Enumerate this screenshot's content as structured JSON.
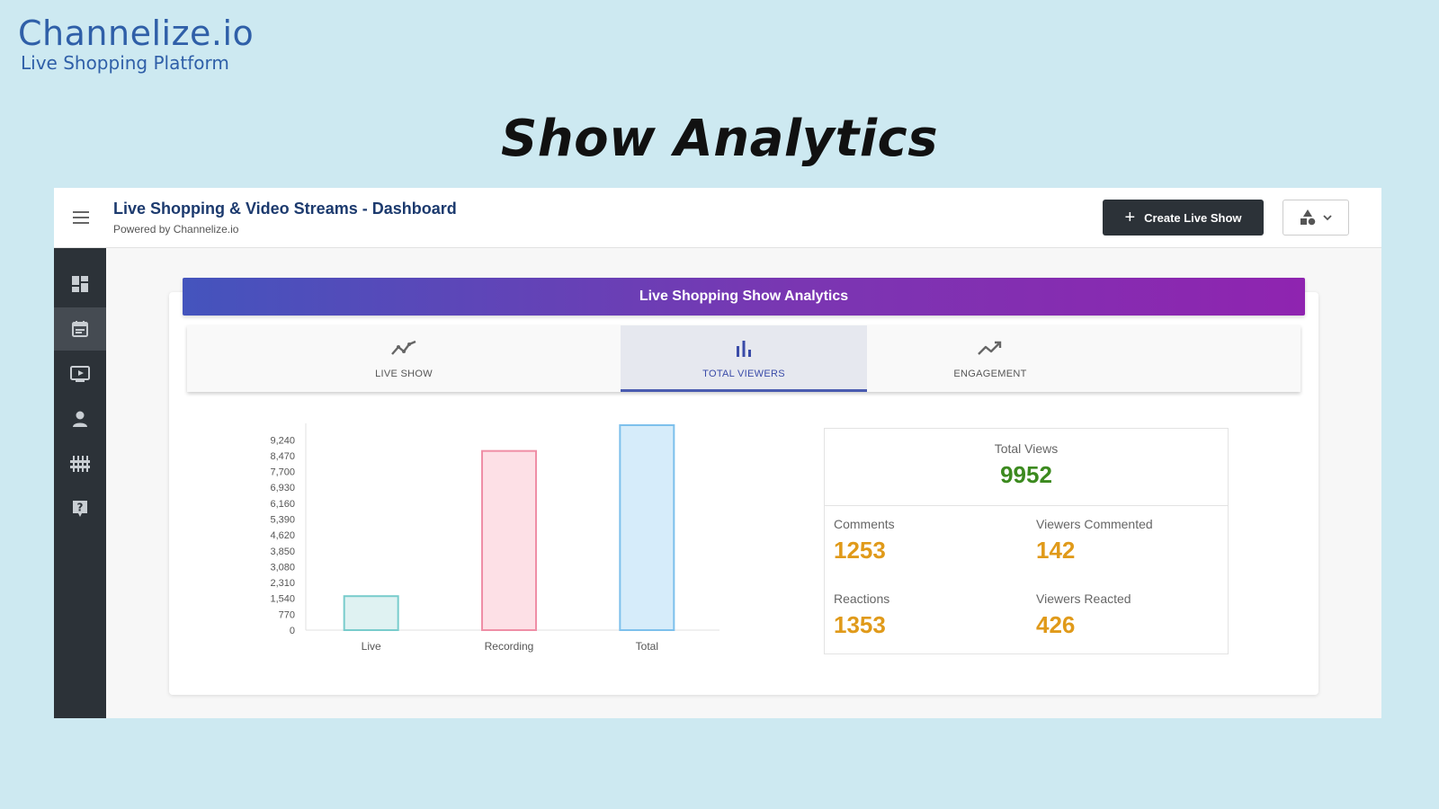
{
  "brand": {
    "name": "Channelize.io",
    "tagline": "Live Shopping Platform"
  },
  "headline": "Show Analytics",
  "header": {
    "title": "Live Shopping & Video Streams - Dashboard",
    "subtitle": "Powered by Channelize.io",
    "create_button_label": "Create Live Show"
  },
  "sidebar": {
    "items": [
      {
        "icon": "dashboard-icon"
      },
      {
        "icon": "calendar-icon",
        "active": true
      },
      {
        "icon": "video-icon"
      },
      {
        "icon": "user-icon"
      },
      {
        "icon": "sliders-icon"
      },
      {
        "icon": "help-icon"
      }
    ]
  },
  "analytics": {
    "banner_title": "Live Shopping Show Analytics",
    "tabs": [
      {
        "label": "LIVE SHOW",
        "icon": "line-chart-icon",
        "active": false
      },
      {
        "label": "TOTAL VIEWERS",
        "icon": "bar-chart-icon",
        "active": true
      },
      {
        "label": "ENGAGEMENT",
        "icon": "trending-up-icon",
        "active": false
      }
    ]
  },
  "chart_data": {
    "type": "bar",
    "categories": [
      "Live",
      "Recording",
      "Total"
    ],
    "values": [
      1650,
      8700,
      9952
    ],
    "yticks": [
      0,
      770,
      1540,
      2310,
      3080,
      3850,
      4620,
      5390,
      6160,
      6930,
      7700,
      8470,
      9240
    ],
    "ytick_labels": [
      "0",
      "770",
      "1,540",
      "2,310",
      "3,080",
      "3,850",
      "4,620",
      "5,390",
      "6,160",
      "6,930",
      "7,700",
      "8,470",
      "9,240"
    ],
    "ylim": [
      0,
      9952
    ],
    "colors": [
      {
        "fill": "#dff2f2",
        "stroke": "#78cccc"
      },
      {
        "fill": "#fde0e6",
        "stroke": "#ef8ea6"
      },
      {
        "fill": "#d6ecfa",
        "stroke": "#7dc0ec"
      }
    ],
    "grid": false,
    "title": "",
    "xlabel": "",
    "ylabel": ""
  },
  "stats": {
    "total_views": {
      "label": "Total Views",
      "value": "9952"
    },
    "comments": {
      "label": "Comments",
      "value": "1253"
    },
    "viewers_commented": {
      "label": "Viewers Commented",
      "value": "142"
    },
    "reactions": {
      "label": "Reactions",
      "value": "1353"
    },
    "viewers_reacted": {
      "label": "Viewers Reacted",
      "value": "426"
    }
  }
}
